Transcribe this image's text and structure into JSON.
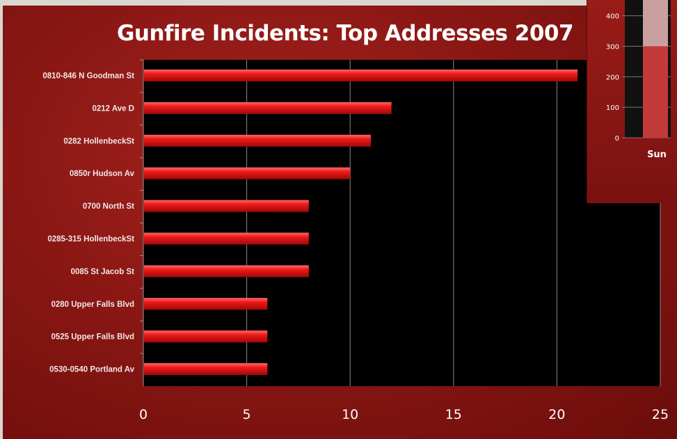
{
  "chart_data": [
    {
      "type": "bar",
      "orientation": "horizontal",
      "title": "Gunfire Incidents:  Top Addresses 2007",
      "categories": [
        "0810-846 N Goodman St",
        "0212 Ave D",
        "0282 HollenbeckSt",
        "0850r Hudson Av",
        "0700 North St",
        "0285-315 HollenbeckSt",
        "0085 St Jacob St",
        "0280 Upper Falls Blvd",
        "0525 Upper Falls Blvd",
        "0530-0540 Portland Av"
      ],
      "values": [
        21,
        12,
        11,
        10,
        8,
        8,
        8,
        6,
        6,
        6
      ],
      "xlim": [
        0,
        25
      ],
      "xticks": [
        0,
        5,
        10,
        15,
        20,
        25
      ],
      "grid": true,
      "bar_color": "#e3171a",
      "plot_background": "#000000"
    },
    {
      "type": "bar",
      "partial": true,
      "categories": [
        "Sun"
      ],
      "series": [
        {
          "values": [
            300
          ],
          "color": "#c23a3a"
        },
        {
          "values": [
            170
          ],
          "color": "#c8a0a0"
        }
      ],
      "yticks": [
        0,
        100,
        200,
        300,
        400
      ],
      "ylim": [
        0,
        470
      ]
    }
  ]
}
